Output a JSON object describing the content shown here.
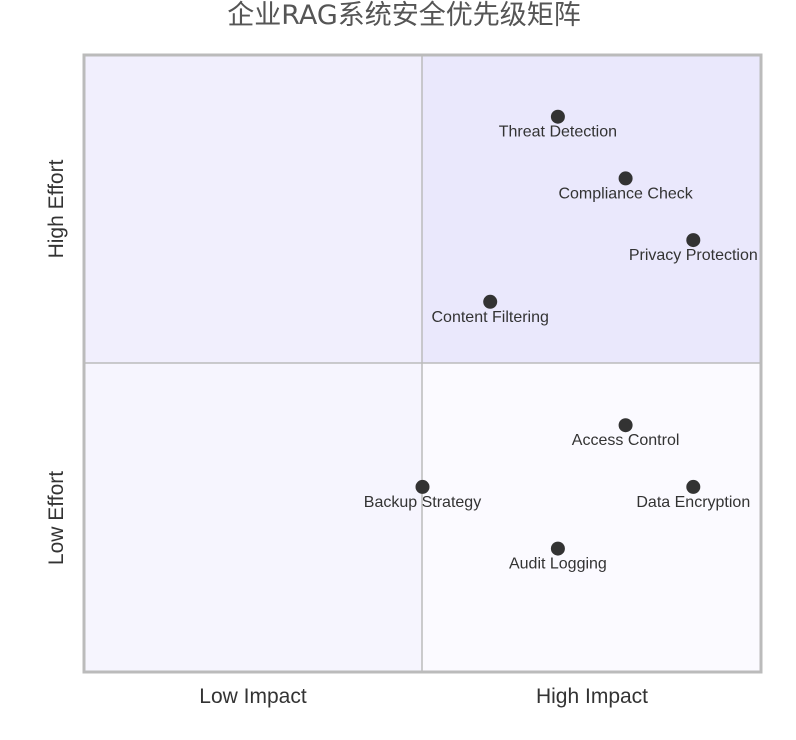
{
  "chart_data": {
    "type": "scatter",
    "title": "企业RAG系统安全优先级矩阵",
    "x_quadrant_labels": [
      "Low Impact",
      "High Impact"
    ],
    "y_quadrant_labels": [
      "Low Effort",
      "High Effort"
    ],
    "xlim": [
      0,
      1
    ],
    "ylim": [
      0,
      1
    ],
    "quadrant_colors": {
      "top_left": "#f1effd",
      "top_right": "#eae8fc",
      "bottom_left": "#f6f5fe",
      "bottom_right": "#fbfaff"
    },
    "point_color": "#333333",
    "points": [
      {
        "label": "Threat Detection",
        "x": 0.7,
        "y": 0.9
      },
      {
        "label": "Compliance Check",
        "x": 0.8,
        "y": 0.8
      },
      {
        "label": "Privacy Protection",
        "x": 0.9,
        "y": 0.7
      },
      {
        "label": "Content Filtering",
        "x": 0.6,
        "y": 0.6
      },
      {
        "label": "Access Control",
        "x": 0.8,
        "y": 0.4
      },
      {
        "label": "Backup Strategy",
        "x": 0.5,
        "y": 0.3
      },
      {
        "label": "Data Encryption",
        "x": 0.9,
        "y": 0.3
      },
      {
        "label": "Audit Logging",
        "x": 0.7,
        "y": 0.2
      }
    ]
  }
}
